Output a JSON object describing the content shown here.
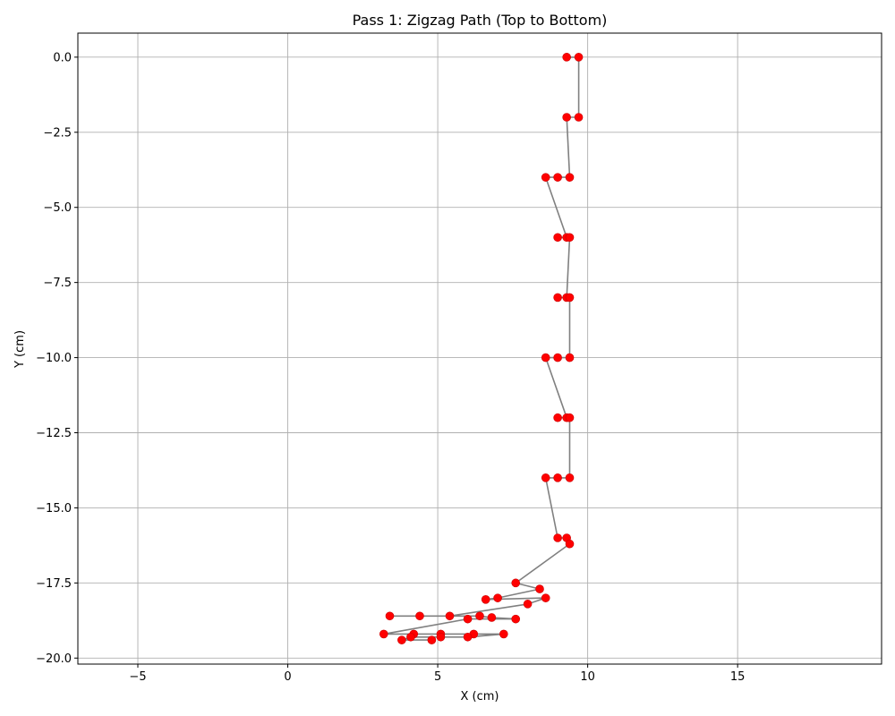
{
  "chart_data": {
    "type": "scatter",
    "title": "Pass 1: Zigzag Path (Top to Bottom)",
    "xlabel": "X (cm)",
    "ylabel": "Y (cm)",
    "xlim": [
      -7.0,
      19.8
    ],
    "ylim": [
      -20.2,
      0.8
    ],
    "x_ticks": [
      -5,
      0,
      5,
      10,
      15
    ],
    "y_ticks": [
      0.0,
      -2.5,
      -5.0,
      -7.5,
      -10.0,
      -12.5,
      -15.0,
      -17.5,
      -20.0
    ],
    "x_tick_labels": [
      "−5",
      "0",
      "5",
      "10",
      "15"
    ],
    "y_tick_labels": [
      "0.0",
      "−2.5",
      "−5.0",
      "−7.5",
      "−10.0",
      "−12.5",
      "−15.0",
      "−17.5",
      "−20.0"
    ],
    "grid": true,
    "line_color": "#808080",
    "marker_color": "#ff0000",
    "marker_edge_color": "#cc0000",
    "points": [
      [
        9.3,
        0.0
      ],
      [
        9.7,
        0.0
      ],
      [
        9.7,
        -2.0
      ],
      [
        9.3,
        -2.0
      ],
      [
        9.4,
        -4.0
      ],
      [
        9.0,
        -4.0
      ],
      [
        8.6,
        -4.0
      ],
      [
        9.3,
        -6.0
      ],
      [
        9.0,
        -6.0
      ],
      [
        9.4,
        -6.0
      ],
      [
        9.3,
        -8.0
      ],
      [
        9.0,
        -8.0
      ],
      [
        9.4,
        -8.0
      ],
      [
        9.4,
        -10.0
      ],
      [
        9.0,
        -10.0
      ],
      [
        8.6,
        -10.0
      ],
      [
        9.3,
        -12.0
      ],
      [
        9.0,
        -12.0
      ],
      [
        9.4,
        -12.0
      ],
      [
        9.4,
        -14.0
      ],
      [
        9.0,
        -14.0
      ],
      [
        8.6,
        -14.0
      ],
      [
        9.0,
        -16.0
      ],
      [
        9.3,
        -16.0
      ],
      [
        9.4,
        -16.2
      ],
      [
        7.6,
        -17.5
      ],
      [
        8.4,
        -17.7
      ],
      [
        7.0,
        -18.0
      ],
      [
        6.6,
        -18.05
      ],
      [
        8.6,
        -18.0
      ],
      [
        8.0,
        -18.2
      ],
      [
        5.4,
        -18.6
      ],
      [
        4.4,
        -18.6
      ],
      [
        3.4,
        -18.6
      ],
      [
        6.4,
        -18.6
      ],
      [
        6.8,
        -18.65
      ],
      [
        7.6,
        -18.7
      ],
      [
        6.0,
        -18.7
      ],
      [
        3.2,
        -19.2
      ],
      [
        4.2,
        -19.2
      ],
      [
        5.1,
        -19.2
      ],
      [
        6.2,
        -19.2
      ],
      [
        7.2,
        -19.2
      ],
      [
        6.0,
        -19.3
      ],
      [
        5.1,
        -19.3
      ],
      [
        4.1,
        -19.3
      ],
      [
        3.8,
        -19.4
      ],
      [
        4.8,
        -19.4
      ]
    ]
  }
}
